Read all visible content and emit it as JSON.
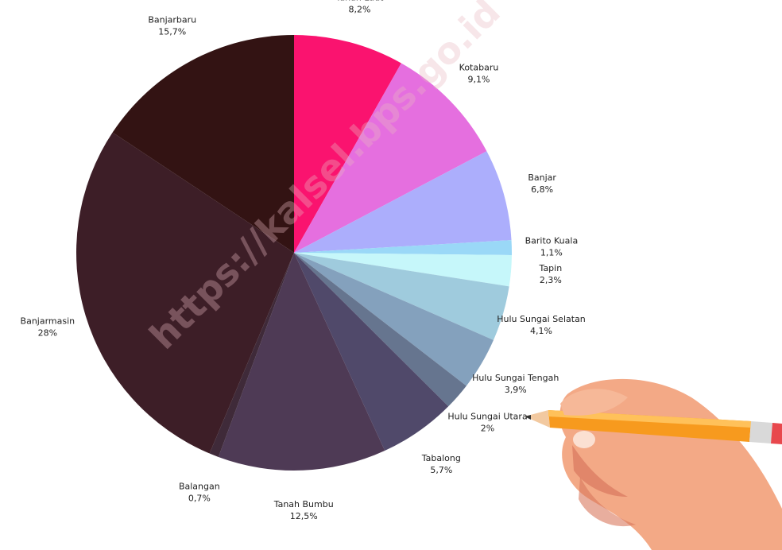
{
  "chart_data": {
    "type": "pie",
    "title": "",
    "start_angle_deg": 0,
    "direction": "clockwise",
    "slices": [
      {
        "label": "Tanah Laut",
        "value_text": "8,2%",
        "value": 8.2,
        "color": "#fa136f"
      },
      {
        "label": "Kotabaru",
        "value_text": "9,1%",
        "value": 9.1,
        "color": "#e56fdf"
      },
      {
        "label": "Banjar",
        "value_text": "6,8%",
        "value": 6.8,
        "color": "#acaefc"
      },
      {
        "label": "Barito Kuala",
        "value_text": "1,1%",
        "value": 1.1,
        "color": "#9ad8f7"
      },
      {
        "label": "Tapin",
        "value_text": "2,3%",
        "value": 2.3,
        "color": "#c6f7fa"
      },
      {
        "label": "Hulu Sungai Selatan",
        "value_text": "4,1%",
        "value": 4.1,
        "color": "#9fcbdd"
      },
      {
        "label": "Hulu Sungai Tengah",
        "value_text": "3,9%",
        "value": 3.9,
        "color": "#84a1bd"
      },
      {
        "label": "Hulu Sungai Utara",
        "value_text": "2%",
        "value": 2.0,
        "color": "#66758f"
      },
      {
        "label": "Tabalong",
        "value_text": "5,7%",
        "value": 5.7,
        "color": "#50496a"
      },
      {
        "label": "Tanah Bumbu",
        "value_text": "12,5%",
        "value": 12.5,
        "color": "#4e3a55"
      },
      {
        "label": "Balangan",
        "value_text": "0,7%",
        "value": 0.7,
        "color": "#3f2a39"
      },
      {
        "label": "Banjarmasin",
        "value_text": "28%",
        "value": 28.0,
        "color": "#3d1e27"
      },
      {
        "label": "Banjarbaru",
        "value_text": "15,7%",
        "value": 15.7,
        "color": "#331313"
      }
    ]
  },
  "watermark": "https://kalsel.bps.go.id",
  "illustration": {
    "name": "hand-holding-pencil",
    "skin_color": "#f3a986",
    "pencil_color": "#f79a1e"
  }
}
